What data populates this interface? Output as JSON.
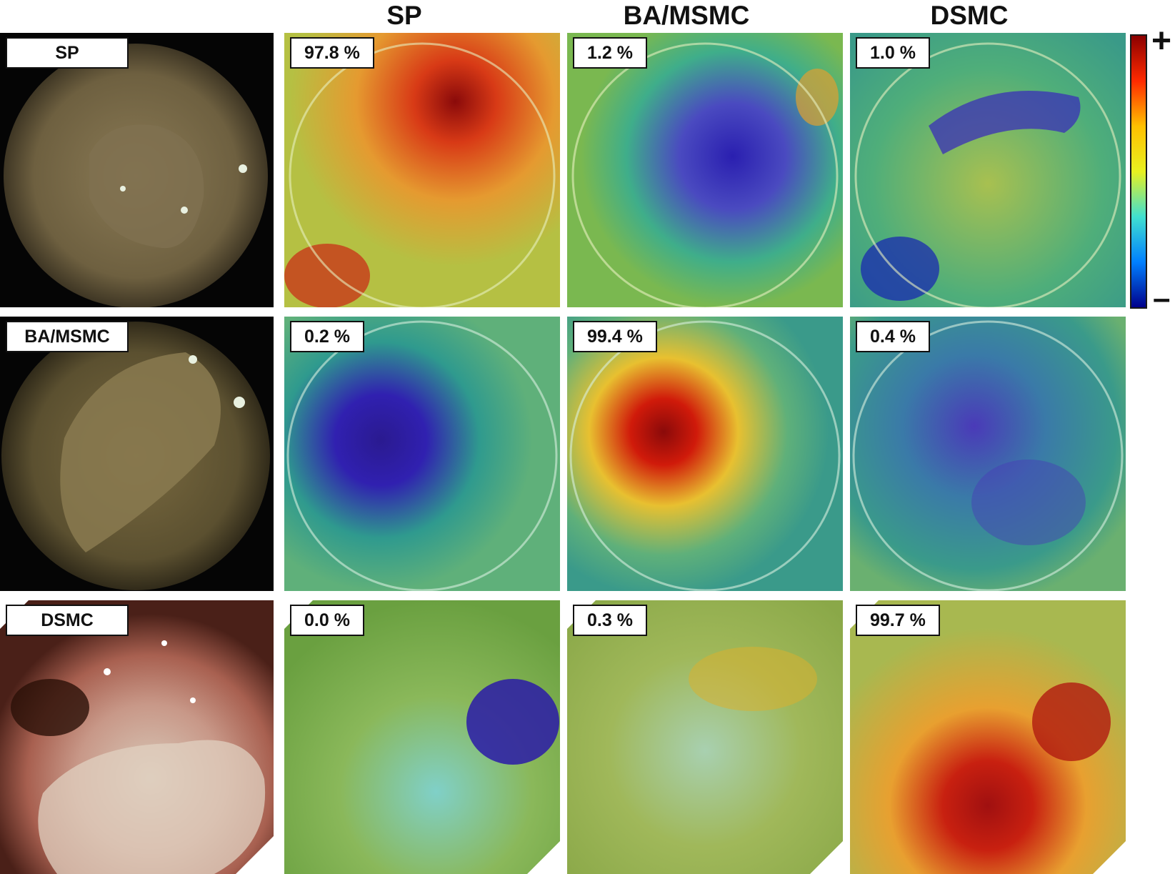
{
  "column_headers": [
    "SP",
    "BA/MSMC",
    "DSMC"
  ],
  "colorbar": {
    "plus": "+",
    "minus": "–",
    "colors": [
      "#8b0000",
      "#ff2a00",
      "#ffc000",
      "#e8f020",
      "#40e0d0",
      "#0080ff",
      "#00008b"
    ]
  },
  "rows": [
    {
      "class_label": "SP",
      "original_tint": "#6e6040",
      "probabilities": [
        "97.8 %",
        "1.2 %",
        "1.0 %"
      ],
      "heatmap_bases": [
        "#b5c043",
        "#3fae8a",
        "#4fae7a"
      ],
      "heatmap_hotspot_colors": [
        "#d83a16",
        "#2a1fb0",
        "#3a2fb8"
      ]
    },
    {
      "class_label": "BA/MSMC",
      "original_tint": "#5b5030",
      "probabilities": [
        "0.2 %",
        "99.4 %",
        "0.4 %"
      ],
      "heatmap_bases": [
        "#2f9a8e",
        "#5fb07a",
        "#3a9a8a"
      ],
      "heatmap_hotspot_colors": [
        "#3020b0",
        "#d01a0a",
        "#4a3ab8"
      ]
    },
    {
      "class_label": "DSMC",
      "original_tint": "#a86050",
      "probabilities": [
        "0.0 %",
        "0.3 %",
        "99.7 %"
      ],
      "heatmap_bases": [
        "#8ab85a",
        "#a0b85a",
        "#a8b850"
      ],
      "heatmap_hotspot_colors": [
        "#2a1aa8",
        "#d8b030",
        "#c82010"
      ]
    }
  ]
}
